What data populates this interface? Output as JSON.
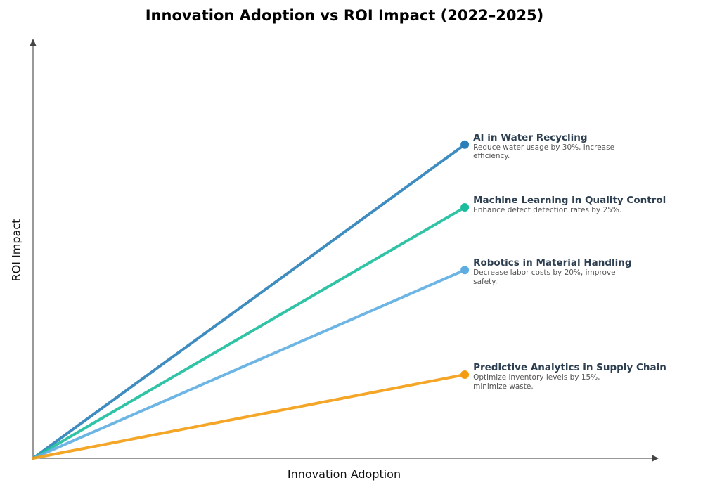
{
  "chart_data": {
    "type": "line",
    "title": "Innovation Adoption vs ROI Impact (2022–2025)",
    "xlabel": "Innovation Adoption",
    "ylabel": "ROI Impact",
    "xlim": [
      0,
      1
    ],
    "ylim": [
      0,
      1
    ],
    "grid": false,
    "ticks_shown": false,
    "series": [
      {
        "name": "AI in Water Recycling",
        "description": "Reduce water usage by 30%, increase efficiency.",
        "x": [
          0,
          0.69
        ],
        "y": [
          0,
          0.75
        ],
        "color": "#2980b9"
      },
      {
        "name": "Machine Learning in Quality Control",
        "description": "Enhance defect detection rates by 25%.",
        "x": [
          0,
          0.69
        ],
        "y": [
          0,
          0.6
        ],
        "color": "#1abc9c"
      },
      {
        "name": "Robotics in Material Handling",
        "description": "Decrease labor costs by 20%, improve safety.",
        "x": [
          0,
          0.69
        ],
        "y": [
          0,
          0.45
        ],
        "color": "#5dade2"
      },
      {
        "name": "Predictive Analytics in Supply Chain",
        "description": "Optimize inventory levels by 15%, minimize waste.",
        "x": [
          0,
          0.69
        ],
        "y": [
          0,
          0.2
        ],
        "color": "#f39c12"
      }
    ]
  }
}
